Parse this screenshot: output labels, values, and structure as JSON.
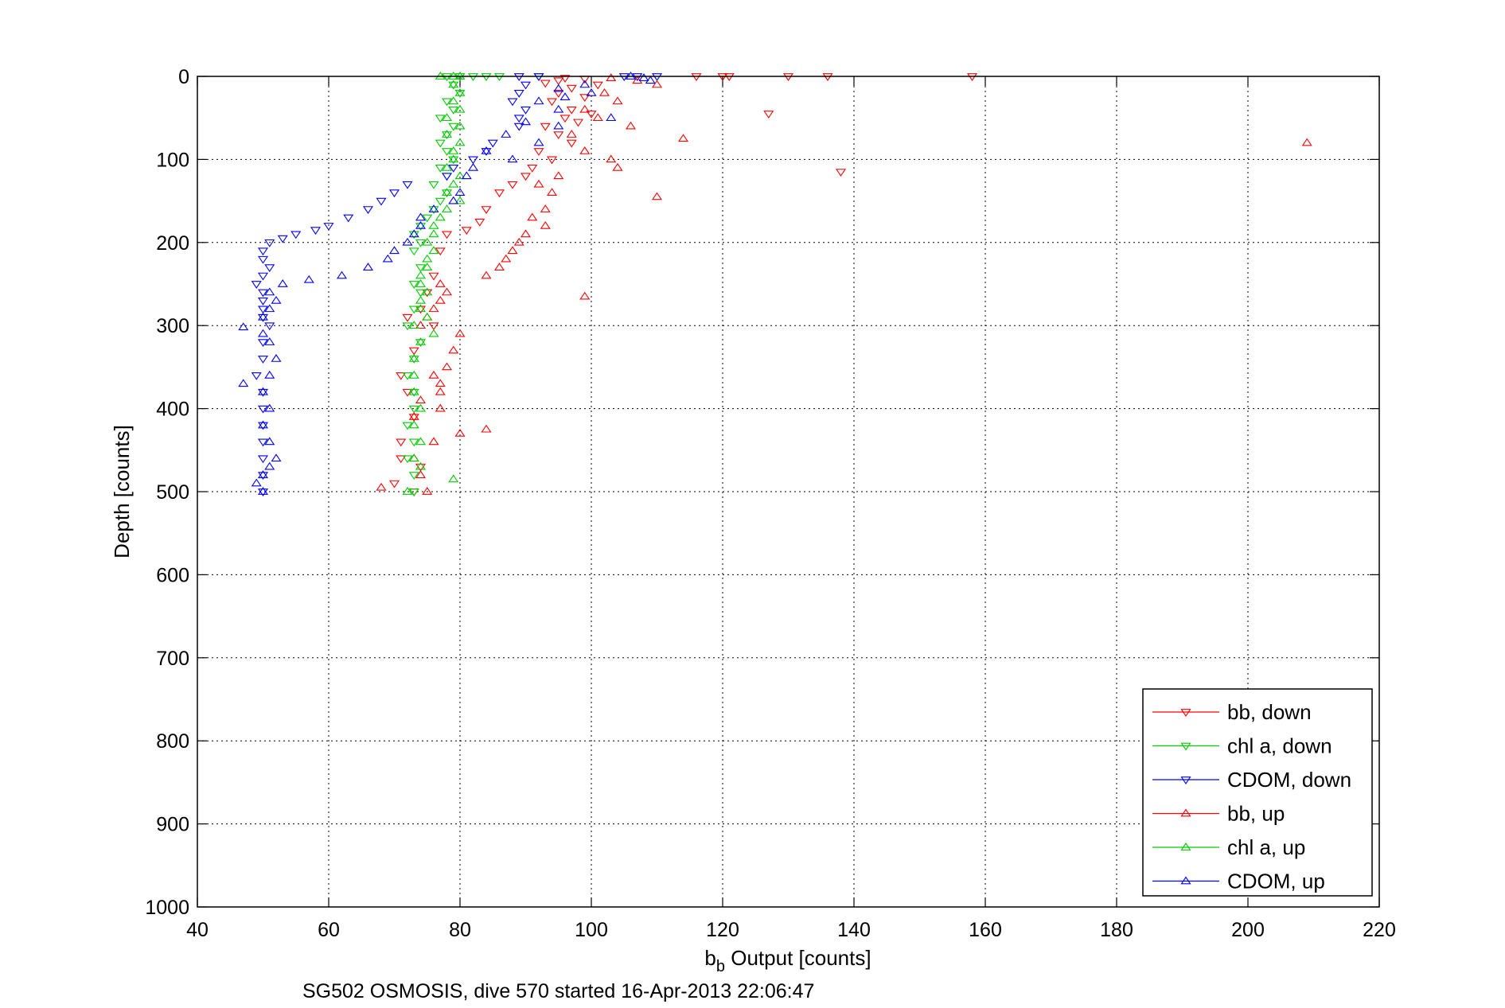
{
  "chart_data": {
    "type": "scatter",
    "title": "",
    "xlabel_base": "b",
    "xlabel_sub": "b",
    "xlabel_rest": " Output [counts]",
    "ylabel": "Depth [counts]",
    "caption": "SG502 OSMOSIS, dive 570 started 16-Apr-2013 22:06:47",
    "xlim": [
      40,
      220
    ],
    "ylim": [
      0,
      1000
    ],
    "y_reversed": true,
    "grid": true,
    "legend_position": "bottom-right",
    "x_ticks": [
      "40",
      "60",
      "80",
      "100",
      "120",
      "140",
      "160",
      "180",
      "200",
      "220"
    ],
    "y_ticks": [
      "0",
      "100",
      "200",
      "300",
      "400",
      "500",
      "600",
      "700",
      "800",
      "900",
      "1000"
    ],
    "series": [
      {
        "name": "bb, down",
        "color": "#ff0000",
        "marker": "triangle-down",
        "points": [
          [
            116,
            0
          ],
          [
            120,
            0
          ],
          [
            121,
            0
          ],
          [
            130,
            0
          ],
          [
            136,
            0
          ],
          [
            158,
            0
          ],
          [
            96,
            2
          ],
          [
            99,
            3
          ],
          [
            95,
            5
          ],
          [
            93,
            8
          ],
          [
            101,
            10
          ],
          [
            97,
            14
          ],
          [
            95,
            20
          ],
          [
            99,
            25
          ],
          [
            94,
            30
          ],
          [
            97,
            40
          ],
          [
            100,
            45
          ],
          [
            96,
            50
          ],
          [
            127,
            45
          ],
          [
            93,
            60
          ],
          [
            98,
            55
          ],
          [
            95,
            70
          ],
          [
            97,
            80
          ],
          [
            92,
            90
          ],
          [
            94,
            100
          ],
          [
            91,
            110
          ],
          [
            138,
            115
          ],
          [
            90,
            120
          ],
          [
            88,
            130
          ],
          [
            86,
            140
          ],
          [
            84,
            160
          ],
          [
            83,
            175
          ],
          [
            81,
            185
          ],
          [
            78,
            190
          ],
          [
            77,
            210
          ],
          [
            76,
            240
          ],
          [
            75,
            260
          ],
          [
            74,
            280
          ],
          [
            72,
            290
          ],
          [
            76,
            300
          ],
          [
            73,
            330
          ],
          [
            71,
            360
          ],
          [
            72,
            380
          ],
          [
            73,
            410
          ],
          [
            71,
            440
          ],
          [
            71,
            460
          ],
          [
            70,
            490
          ],
          [
            73,
            500
          ],
          [
            74,
            470
          ]
        ]
      },
      {
        "name": "chl a, down",
        "color": "#00cc00",
        "marker": "triangle-down",
        "points": [
          [
            78,
            0
          ],
          [
            80,
            0
          ],
          [
            82,
            0
          ],
          [
            84,
            0
          ],
          [
            86,
            0
          ],
          [
            92,
            0
          ],
          [
            79,
            10
          ],
          [
            80,
            20
          ],
          [
            78,
            30
          ],
          [
            79,
            40
          ],
          [
            77,
            50
          ],
          [
            79,
            60
          ],
          [
            78,
            70
          ],
          [
            77,
            80
          ],
          [
            78,
            90
          ],
          [
            79,
            100
          ],
          [
            77,
            110
          ],
          [
            78,
            120
          ],
          [
            76,
            130
          ],
          [
            78,
            140
          ],
          [
            77,
            150
          ],
          [
            76,
            160
          ],
          [
            75,
            170
          ],
          [
            74,
            180
          ],
          [
            73,
            190
          ],
          [
            74,
            200
          ],
          [
            73,
            210
          ],
          [
            74,
            230
          ],
          [
            73,
            250
          ],
          [
            74,
            260
          ],
          [
            73,
            280
          ],
          [
            72,
            300
          ],
          [
            74,
            320
          ],
          [
            73,
            340
          ],
          [
            72,
            360
          ],
          [
            73,
            380
          ],
          [
            73,
            400
          ],
          [
            72,
            420
          ],
          [
            73,
            440
          ],
          [
            72,
            460
          ],
          [
            73,
            480
          ],
          [
            73,
            500
          ]
        ]
      },
      {
        "name": "CDOM, down",
        "color": "#0000ff",
        "marker": "triangle-down",
        "points": [
          [
            89,
            0
          ],
          [
            92,
            0
          ],
          [
            105,
            0
          ],
          [
            107,
            0
          ],
          [
            110,
            0
          ],
          [
            90,
            10
          ],
          [
            89,
            20
          ],
          [
            88,
            30
          ],
          [
            90,
            40
          ],
          [
            89,
            50
          ],
          [
            89,
            60
          ],
          [
            85,
            80
          ],
          [
            84,
            90
          ],
          [
            82,
            100
          ],
          [
            79,
            110
          ],
          [
            78,
            120
          ],
          [
            72,
            130
          ],
          [
            70,
            140
          ],
          [
            68,
            150
          ],
          [
            66,
            160
          ],
          [
            63,
            170
          ],
          [
            60,
            180
          ],
          [
            58,
            185
          ],
          [
            55,
            190
          ],
          [
            53,
            195
          ],
          [
            51,
            200
          ],
          [
            50,
            210
          ],
          [
            50,
            220
          ],
          [
            51,
            230
          ],
          [
            50,
            240
          ],
          [
            49,
            250
          ],
          [
            50,
            260
          ],
          [
            50,
            270
          ],
          [
            50,
            280
          ],
          [
            50,
            290
          ],
          [
            51,
            300
          ],
          [
            50,
            320
          ],
          [
            50,
            340
          ],
          [
            49,
            360
          ],
          [
            50,
            380
          ],
          [
            50,
            400
          ],
          [
            50,
            420
          ],
          [
            50,
            440
          ],
          [
            50,
            460
          ],
          [
            50,
            480
          ],
          [
            50,
            500
          ]
        ]
      },
      {
        "name": "bb, up",
        "color": "#ff0000",
        "marker": "triangle-up",
        "points": [
          [
            103,
            2
          ],
          [
            107,
            5
          ],
          [
            110,
            10
          ],
          [
            102,
            20
          ],
          [
            104,
            30
          ],
          [
            99,
            40
          ],
          [
            101,
            50
          ],
          [
            106,
            60
          ],
          [
            97,
            70
          ],
          [
            114,
            75
          ],
          [
            209,
            80
          ],
          [
            99,
            90
          ],
          [
            103,
            100
          ],
          [
            104,
            110
          ],
          [
            95,
            120
          ],
          [
            92,
            130
          ],
          [
            94,
            140
          ],
          [
            110,
            145
          ],
          [
            93,
            160
          ],
          [
            91,
            170
          ],
          [
            93,
            180
          ],
          [
            90,
            190
          ],
          [
            89,
            200
          ],
          [
            88,
            210
          ],
          [
            87,
            220
          ],
          [
            86,
            230
          ],
          [
            84,
            240
          ],
          [
            77,
            250
          ],
          [
            78,
            260
          ],
          [
            99,
            265
          ],
          [
            77,
            270
          ],
          [
            76,
            280
          ],
          [
            75,
            290
          ],
          [
            74,
            300
          ],
          [
            80,
            310
          ],
          [
            79,
            330
          ],
          [
            78,
            350
          ],
          [
            76,
            360
          ],
          [
            77,
            370
          ],
          [
            77,
            380
          ],
          [
            74,
            390
          ],
          [
            77,
            400
          ],
          [
            73,
            410
          ],
          [
            84,
            425
          ],
          [
            80,
            430
          ],
          [
            76,
            440
          ],
          [
            73,
            460
          ],
          [
            74,
            480
          ],
          [
            68,
            495
          ],
          [
            75,
            500
          ]
        ]
      },
      {
        "name": "chl a, up",
        "color": "#00cc00",
        "marker": "triangle-up",
        "points": [
          [
            77,
            0
          ],
          [
            79,
            0
          ],
          [
            80,
            0
          ],
          [
            79,
            10
          ],
          [
            80,
            20
          ],
          [
            79,
            30
          ],
          [
            80,
            40
          ],
          [
            78,
            50
          ],
          [
            80,
            60
          ],
          [
            78,
            70
          ],
          [
            80,
            80
          ],
          [
            79,
            90
          ],
          [
            79,
            100
          ],
          [
            78,
            110
          ],
          [
            80,
            120
          ],
          [
            79,
            130
          ],
          [
            78,
            140
          ],
          [
            80,
            150
          ],
          [
            78,
            160
          ],
          [
            77,
            170
          ],
          [
            76,
            180
          ],
          [
            76,
            190
          ],
          [
            75,
            200
          ],
          [
            76,
            210
          ],
          [
            75,
            220
          ],
          [
            75,
            230
          ],
          [
            74,
            240
          ],
          [
            74,
            250
          ],
          [
            75,
            260
          ],
          [
            74,
            270
          ],
          [
            74,
            280
          ],
          [
            75,
            290
          ],
          [
            73,
            300
          ],
          [
            76,
            310
          ],
          [
            74,
            320
          ],
          [
            73,
            340
          ],
          [
            73,
            360
          ],
          [
            73,
            380
          ],
          [
            74,
            400
          ],
          [
            73,
            420
          ],
          [
            74,
            440
          ],
          [
            73,
            460
          ],
          [
            74,
            470
          ],
          [
            79,
            485
          ],
          [
            72,
            500
          ]
        ]
      },
      {
        "name": "CDOM, up",
        "color": "#0000ff",
        "marker": "triangle-up",
        "points": [
          [
            106,
            0
          ],
          [
            108,
            2
          ],
          [
            109,
            5
          ],
          [
            99,
            10
          ],
          [
            95,
            15
          ],
          [
            100,
            20
          ],
          [
            96,
            25
          ],
          [
            92,
            30
          ],
          [
            95,
            40
          ],
          [
            103,
            50
          ],
          [
            90,
            55
          ],
          [
            95,
            60
          ],
          [
            87,
            70
          ],
          [
            92,
            80
          ],
          [
            84,
            90
          ],
          [
            88,
            100
          ],
          [
            82,
            110
          ],
          [
            81,
            120
          ],
          [
            80,
            140
          ],
          [
            79,
            150
          ],
          [
            76,
            160
          ],
          [
            74,
            170
          ],
          [
            74,
            180
          ],
          [
            73,
            190
          ],
          [
            72,
            200
          ],
          [
            70,
            210
          ],
          [
            69,
            220
          ],
          [
            66,
            230
          ],
          [
            62,
            240
          ],
          [
            57,
            245
          ],
          [
            53,
            250
          ],
          [
            51,
            260
          ],
          [
            52,
            270
          ],
          [
            51,
            280
          ],
          [
            50,
            290
          ],
          [
            47,
            302
          ],
          [
            50,
            310
          ],
          [
            51,
            320
          ],
          [
            52,
            340
          ],
          [
            51,
            360
          ],
          [
            47,
            370
          ],
          [
            50,
            380
          ],
          [
            51,
            400
          ],
          [
            50,
            420
          ],
          [
            51,
            440
          ],
          [
            52,
            460
          ],
          [
            51,
            470
          ],
          [
            50,
            480
          ],
          [
            49,
            490
          ],
          [
            50,
            500
          ]
        ]
      }
    ]
  }
}
